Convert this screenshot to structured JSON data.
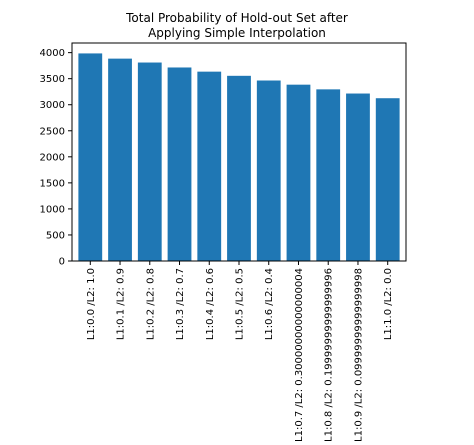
{
  "chart_data": {
    "type": "bar",
    "title_lines": [
      "Total Probability of Hold-out Set after",
      "Applying Simple Interpolation"
    ],
    "xlabel": "",
    "ylabel": "",
    "categories": [
      "L1:0.0 /L2: 1.0",
      "L1:0.1 /L2: 0.9",
      "L1:0.2 /L2: 0.8",
      "L1:0.3 /L2: 0.7",
      "L1:0.4 /L2: 0.6",
      "L1:0.5 /L2: 0.5",
      "L1:0.6 /L2: 0.4",
      "L1:0.7 /L2: 0.30000000000000004",
      "L1:0.8 /L2: 0.19999999999999996",
      "L1:0.9 /L2: 0.09999999999999998",
      "L1:1.0 /L2: 0.0"
    ],
    "values": [
      3985,
      3885,
      3810,
      3715,
      3635,
      3555,
      3465,
      3385,
      3295,
      3215,
      3125
    ],
    "yticks": [
      0,
      500,
      1000,
      1500,
      2000,
      2500,
      3000,
      3500,
      4000
    ],
    "ylim": [
      0,
      4185
    ],
    "bar_color": "#1f77b4",
    "grid": false,
    "legend": "none"
  }
}
